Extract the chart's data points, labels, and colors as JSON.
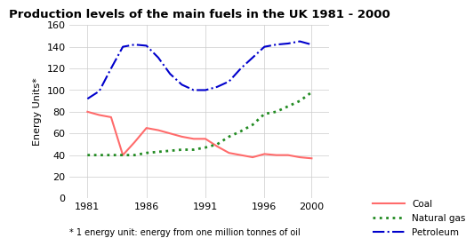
{
  "title": "Production levels of the main fuels in the UK 1981 - 2000",
  "ylabel": "Energy Units*",
  "footnote": "* 1 energy unit: energy from one million tonnes of oil",
  "ylim": [
    0,
    160
  ],
  "yticks": [
    0,
    20,
    40,
    60,
    80,
    100,
    120,
    140,
    160
  ],
  "xticks": [
    1981,
    1986,
    1991,
    1996,
    2000
  ],
  "xlim": [
    1979.5,
    2001.5
  ],
  "coal": {
    "years": [
      1981,
      1982,
      1983,
      1984,
      1985,
      1986,
      1987,
      1988,
      1989,
      1990,
      1991,
      1992,
      1993,
      1994,
      1995,
      1996,
      1997,
      1998,
      1999,
      2000
    ],
    "values": [
      80,
      77,
      75,
      40,
      52,
      65,
      63,
      60,
      57,
      55,
      55,
      48,
      42,
      40,
      38,
      41,
      40,
      40,
      38,
      37
    ],
    "color": "#FF6B6B",
    "linestyle": "-",
    "linewidth": 1.5,
    "label": "Coal"
  },
  "natural_gas": {
    "years": [
      1981,
      1982,
      1983,
      1984,
      1985,
      1986,
      1987,
      1988,
      1989,
      1990,
      1991,
      1992,
      1993,
      1994,
      1995,
      1996,
      1997,
      1998,
      1999,
      2000
    ],
    "values": [
      40,
      40,
      40,
      40,
      40,
      42,
      43,
      44,
      45,
      45,
      47,
      50,
      57,
      62,
      68,
      78,
      80,
      85,
      90,
      98
    ],
    "color": "#228B22",
    "linestyle": ":",
    "linewidth": 2.0,
    "label": "Natural gas"
  },
  "petroleum": {
    "years": [
      1981,
      1982,
      1983,
      1984,
      1985,
      1986,
      1987,
      1988,
      1989,
      1990,
      1991,
      1992,
      1993,
      1994,
      1995,
      1996,
      1997,
      1998,
      1999,
      2000
    ],
    "values": [
      92,
      99,
      120,
      140,
      142,
      141,
      130,
      115,
      105,
      100,
      100,
      103,
      108,
      120,
      130,
      140,
      142,
      143,
      145,
      142
    ],
    "color": "#0000CC",
    "linestyle": "-.",
    "linewidth": 1.5,
    "label": "Petroleum"
  },
  "background_color": "#FFFFFF",
  "grid_color": "#CCCCCC",
  "title_fontsize": 9.5,
  "tick_fontsize": 8,
  "ylabel_fontsize": 8,
  "legend_fontsize": 7.5,
  "footnote_fontsize": 7
}
